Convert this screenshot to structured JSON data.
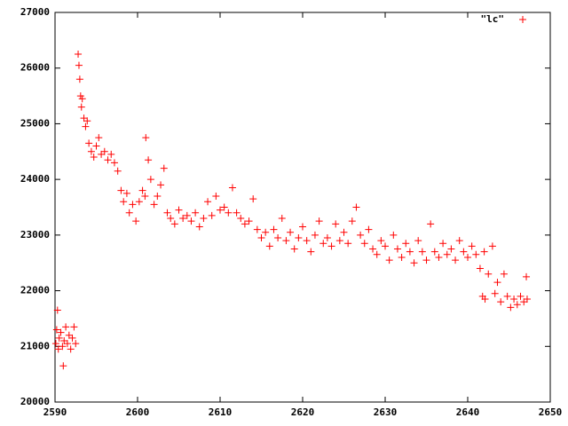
{
  "chart_data": {
    "type": "scatter",
    "xlim": [
      2590,
      2650
    ],
    "xticks": [
      2590,
      2600,
      2610,
      2620,
      2630,
      2640,
      2650
    ],
    "ylim": [
      20000,
      27000
    ],
    "yticks": [
      20000,
      21000,
      22000,
      23000,
      24000,
      25000,
      26000,
      27000
    ],
    "legend": "top-right",
    "series": [
      {
        "name": "\"lc\"",
        "color": "#ff0000",
        "x": [
          2590.1,
          2590.2,
          2590.3,
          2590.4,
          2590.5,
          2590.7,
          2590.9,
          2591.0,
          2591.1,
          2591.3,
          2591.5,
          2591.7,
          2591.9,
          2592.1,
          2592.3,
          2592.5,
          2592.8,
          2592.9,
          2593.0,
          2593.1,
          2593.2,
          2593.3,
          2593.5,
          2593.7,
          2593.9,
          2594.1,
          2594.4,
          2594.7,
          2595.0,
          2595.3,
          2595.6,
          2596.0,
          2596.4,
          2596.8,
          2597.2,
          2597.6,
          2598.0,
          2598.3,
          2598.7,
          2599.0,
          2599.4,
          2599.8,
          2600.2,
          2600.6,
          2600.9,
          2601.0,
          2601.3,
          2601.6,
          2602.0,
          2602.4,
          2602.8,
          2603.2,
          2603.6,
          2604.0,
          2604.5,
          2605.0,
          2605.5,
          2606.0,
          2606.5,
          2607.0,
          2607.5,
          2608.0,
          2608.5,
          2609.0,
          2609.5,
          2610.0,
          2610.5,
          2611.0,
          2611.5,
          2612.0,
          2612.5,
          2613.0,
          2613.5,
          2614.0,
          2614.5,
          2615.0,
          2615.5,
          2616.0,
          2616.5,
          2617.0,
          2617.5,
          2618.0,
          2618.5,
          2619.0,
          2619.5,
          2620.0,
          2620.5,
          2621.0,
          2621.5,
          2622.0,
          2622.5,
          2623.0,
          2623.5,
          2624.0,
          2624.5,
          2625.0,
          2625.5,
          2626.0,
          2626.5,
          2627.0,
          2627.5,
          2628.0,
          2628.5,
          2629.0,
          2629.5,
          2630.0,
          2630.5,
          2631.0,
          2631.5,
          2632.0,
          2632.5,
          2633.0,
          2633.5,
          2634.0,
          2634.5,
          2635.0,
          2635.5,
          2636.0,
          2636.5,
          2637.0,
          2637.5,
          2638.0,
          2638.5,
          2639.0,
          2639.5,
          2640.0,
          2640.5,
          2641.0,
          2641.5,
          2642.0,
          2642.5,
          2643.0,
          2643.3,
          2643.6,
          2644.0,
          2644.4,
          2644.8,
          2645.2,
          2645.6,
          2646.0,
          2646.4,
          2646.8,
          2647.1,
          2647.2,
          2641.8,
          2642.1
        ],
        "values": [
          21050,
          21300,
          21650,
          20950,
          21150,
          21250,
          21000,
          20650,
          21100,
          21350,
          21050,
          21200,
          20950,
          21150,
          21350,
          21050,
          26250,
          26050,
          25800,
          25500,
          25300,
          25450,
          25100,
          24950,
          25050,
          24650,
          24500,
          24400,
          24600,
          24750,
          24450,
          24500,
          24350,
          24450,
          24300,
          24150,
          23800,
          23600,
          23750,
          23400,
          23550,
          23250,
          23600,
          23800,
          23700,
          24750,
          24350,
          24000,
          23550,
          23700,
          23900,
          24200,
          23400,
          23300,
          23200,
          23450,
          23300,
          23350,
          23250,
          23400,
          23150,
          23300,
          23600,
          23350,
          23700,
          23450,
          23500,
          23400,
          23850,
          23400,
          23300,
          23200,
          23250,
          23650,
          23100,
          22950,
          23050,
          22800,
          23100,
          22950,
          23300,
          22900,
          23050,
          22750,
          22950,
          23150,
          22900,
          22700,
          23000,
          23250,
          22850,
          22950,
          22800,
          23200,
          22900,
          23050,
          22850,
          23250,
          23500,
          23000,
          22850,
          23100,
          22750,
          22650,
          22900,
          22800,
          22550,
          23000,
          22750,
          22600,
          22850,
          22700,
          22500,
          22900,
          22700,
          22550,
          23200,
          22700,
          22600,
          22850,
          22650,
          22750,
          22550,
          22900,
          22700,
          22600,
          22800,
          22650,
          22400,
          22700,
          22300,
          22800,
          21950,
          22150,
          21800,
          22300,
          21900,
          21700,
          21850,
          21750,
          21900,
          21800,
          22250,
          21850,
          21900,
          21850
        ]
      }
    ]
  }
}
